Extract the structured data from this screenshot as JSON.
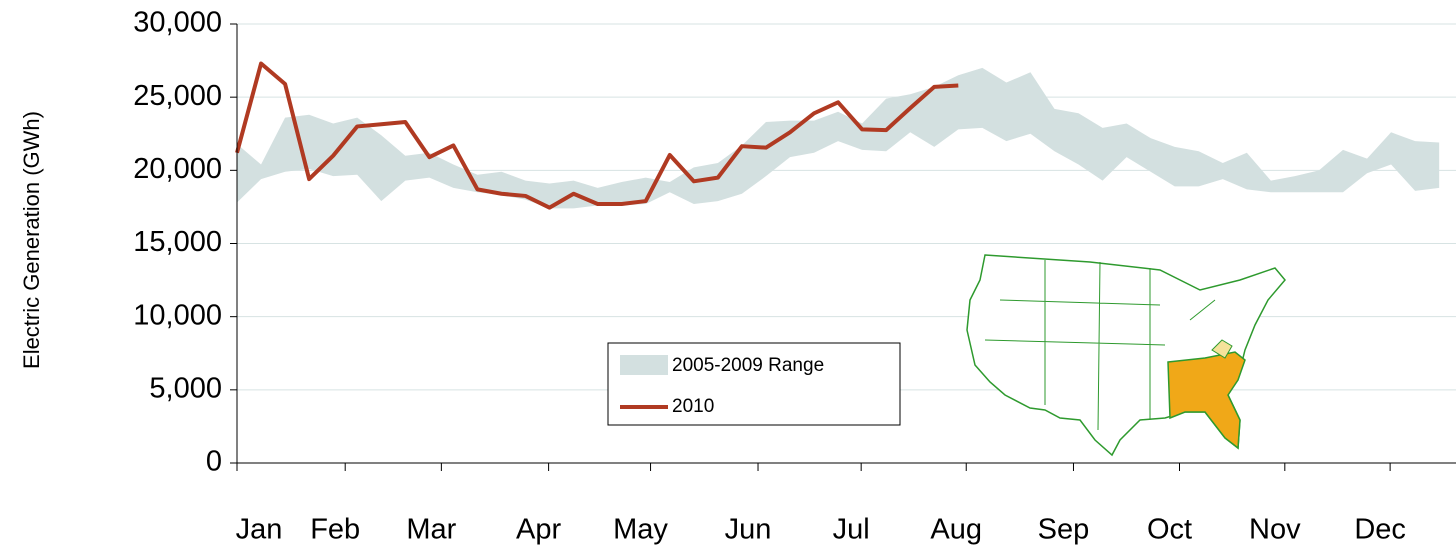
{
  "chart_data": {
    "type": "line",
    "y_label": "Electric Generation (GWh)",
    "x": [
      0,
      1,
      2,
      3,
      4,
      5,
      6,
      7,
      8,
      9,
      10,
      11,
      12,
      13,
      14,
      15,
      16,
      17,
      18,
      19,
      20,
      21,
      22,
      23,
      24,
      25,
      26,
      27,
      28,
      29,
      30,
      31,
      32,
      33,
      34,
      35,
      36,
      37,
      38,
      39,
      40,
      41,
      42,
      43,
      44,
      45,
      46,
      47,
      48,
      49,
      50
    ],
    "xlim": [
      0,
      50.7
    ],
    "xticks": [
      {
        "value": 0,
        "label": "Jan"
      },
      {
        "value": 4.5,
        "label": "Feb"
      },
      {
        "value": 8.5,
        "label": "Mar"
      },
      {
        "value": 12.96,
        "label": "Apr"
      },
      {
        "value": 17.2,
        "label": "May"
      },
      {
        "value": 21.67,
        "label": "Jun"
      },
      {
        "value": 25.96,
        "label": "Jul"
      },
      {
        "value": 30.33,
        "label": "Aug"
      },
      {
        "value": 34.79,
        "label": "Sep"
      },
      {
        "value": 39.2,
        "label": "Oct"
      },
      {
        "value": 43.58,
        "label": "Nov"
      },
      {
        "value": 47.96,
        "label": "Dec"
      }
    ],
    "ylim": [
      0,
      30000
    ],
    "yticks": [
      0,
      {
        "value": 5000,
        "label": "5,000"
      },
      {
        "value": 10000,
        "label": "10,000"
      },
      {
        "value": 15000,
        "label": "15,000"
      },
      {
        "value": 20000,
        "label": "20,000"
      },
      {
        "value": 25000,
        "label": "25,000"
      },
      {
        "value": 30000,
        "label": "30,000"
      }
    ],
    "grid": true,
    "series": [
      {
        "name": "2005-2009 Range",
        "color": "#d3e0e0",
        "upper": [
          21800,
          20400,
          23600,
          23800,
          23200,
          23600,
          22400,
          21000,
          21200,
          20400,
          19700,
          19900,
          19300,
          19100,
          19300,
          18800,
          19200,
          19500,
          19200,
          20200,
          20500,
          21700,
          23300,
          23400,
          23400,
          24000,
          23200,
          24900,
          25200,
          25700,
          26500,
          27000,
          26000,
          26700,
          24200,
          23900,
          22900,
          23200,
          22200,
          21600,
          21300,
          20500,
          21200,
          19300,
          19600,
          20000,
          21400,
          20800,
          22600,
          22000,
          21900
        ],
        "lower": [
          17800,
          19400,
          19900,
          20100,
          19600,
          19700,
          17900,
          19300,
          19500,
          18800,
          18500,
          18300,
          18000,
          17400,
          17400,
          17600,
          17600,
          17700,
          18500,
          17700,
          17900,
          18400,
          19600,
          20900,
          21200,
          22000,
          21400,
          21300,
          22600,
          21600,
          22800,
          22900,
          22000,
          22500,
          21300,
          20400,
          19300,
          20900,
          19900,
          18900,
          18900,
          19400,
          18700,
          18500,
          18500,
          18500,
          18500,
          19800,
          20400,
          18600,
          18800
        ]
      },
      {
        "name": "2010",
        "color": "#b03a22",
        "values": [
          21200,
          27300,
          25900,
          19400,
          21000,
          23000,
          23150,
          23300,
          20900,
          21700,
          18700,
          18400,
          18250,
          17450,
          18400,
          17700,
          17700,
          17900,
          21050,
          19250,
          19500,
          21650,
          21550,
          22600,
          23900,
          24650,
          22800,
          22750,
          24250,
          25700,
          25800,
          null,
          null,
          null,
          null,
          null,
          null,
          null,
          null,
          null,
          null,
          null,
          null,
          null,
          null,
          null,
          null,
          null,
          null,
          null,
          null
        ]
      }
    ]
  }
}
